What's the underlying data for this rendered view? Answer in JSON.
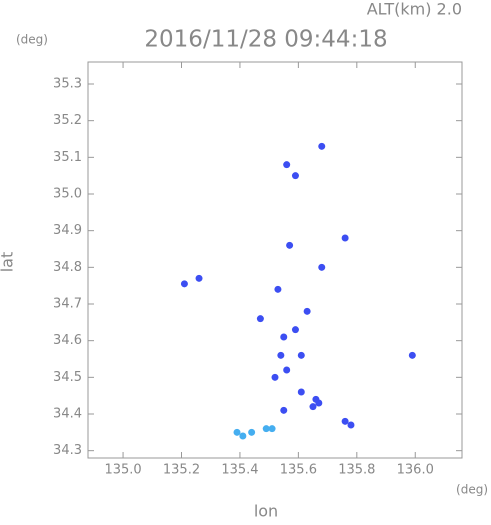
{
  "chart_data": {
    "type": "scatter",
    "title": "2016/11/28 09:44:18",
    "subtitle": "ALT(km) 2.0",
    "y_unit": "(deg)",
    "x_unit": "(deg)",
    "x_label": "lon",
    "y_label": "lat",
    "xlim": [
      134.88,
      136.16
    ],
    "ylim": [
      34.28,
      35.36
    ],
    "xticks": [
      {
        "value": 135.0,
        "label": "135.0"
      },
      {
        "value": 135.2,
        "label": "135.2"
      },
      {
        "value": 135.4,
        "label": "135.4"
      },
      {
        "value": 135.6,
        "label": "135.6"
      },
      {
        "value": 135.8,
        "label": "135.8"
      },
      {
        "value": 136.0,
        "label": "136.0"
      }
    ],
    "yticks": [
      {
        "value": 34.3,
        "label": "34.3"
      },
      {
        "value": 34.4,
        "label": "34.4"
      },
      {
        "value": 34.5,
        "label": "34.5"
      },
      {
        "value": 34.6,
        "label": "34.6"
      },
      {
        "value": 34.7,
        "label": "34.7"
      },
      {
        "value": 34.8,
        "label": "34.8"
      },
      {
        "value": 34.9,
        "label": "34.9"
      },
      {
        "value": 35.0,
        "label": "35.0"
      },
      {
        "value": 35.1,
        "label": "35.1"
      },
      {
        "value": 35.2,
        "label": "35.2"
      },
      {
        "value": 35.3,
        "label": "35.3"
      }
    ],
    "series": [
      {
        "color": "#3c4ef2",
        "x": [
          135.21,
          135.26,
          135.56,
          135.68,
          135.59,
          135.76,
          135.57,
          135.68,
          135.53,
          135.63,
          135.47,
          135.55,
          135.59,
          135.54,
          135.56,
          135.52,
          135.61,
          135.61,
          135.66,
          135.67,
          135.65,
          135.55,
          135.76,
          135.78,
          135.99
        ],
        "values": [
          34.755,
          34.77,
          35.08,
          35.13,
          35.05,
          34.88,
          34.86,
          34.8,
          34.74,
          34.68,
          34.66,
          34.61,
          34.63,
          34.56,
          34.52,
          34.5,
          34.56,
          34.46,
          34.44,
          34.43,
          34.42,
          34.41,
          34.38,
          34.37,
          34.56
        ]
      },
      {
        "color": "#45aef0",
        "x": [
          135.39,
          135.41,
          135.44,
          135.49,
          135.51
        ],
        "values": [
          34.35,
          34.34,
          34.35,
          34.36,
          34.36
        ]
      }
    ]
  }
}
